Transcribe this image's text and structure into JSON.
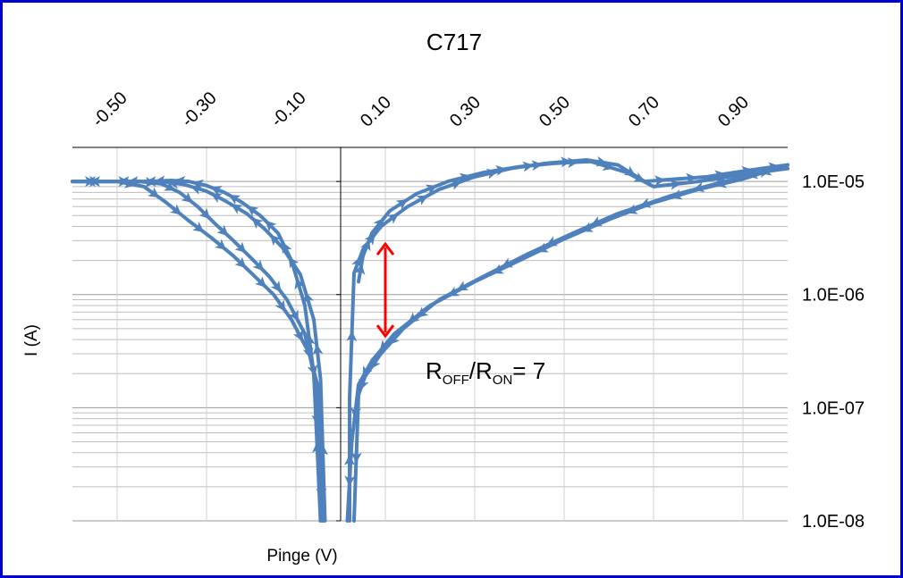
{
  "chart_data": {
    "type": "line",
    "title": "C717",
    "xlabel": "Pinge (V)",
    "ylabel": "I (A)",
    "xlim": [
      -0.6,
      1.0
    ],
    "ylim": [
      1e-08,
      2e-05
    ],
    "yscale": "log",
    "x_axis_position": "top",
    "y_axis_position": "right",
    "x_ticks": [
      -0.5,
      -0.3,
      -0.1,
      0.1,
      0.3,
      0.5,
      0.7,
      0.9
    ],
    "x_tick_labels": [
      "-0.50",
      "-0.30",
      "-0.10",
      "0.10",
      "0.30",
      "0.50",
      "0.70",
      "0.90"
    ],
    "y_ticks": [
      1e-08,
      1e-07,
      1e-06,
      1e-05
    ],
    "y_tick_labels": [
      "1.0E-08",
      "1.0E-07",
      "1.0E-06",
      "1.0E-05"
    ],
    "grid": true,
    "series_color": "#4f81bd",
    "series": [
      {
        "x": [
          0.02,
          0.02,
          0.03,
          0.05,
          0.09,
          0.15,
          0.22,
          0.3,
          0.38,
          0.46,
          0.55,
          0.62,
          0.68,
          0.75,
          0.82,
          0.88,
          0.94,
          1.0
        ],
        "y": [
          1e-08,
          1.2e-07,
          1.55e-06,
          2.5e-06,
          4e-06,
          6e-06,
          8.5e-06,
          1.1e-05,
          1.3e-05,
          1.45e-05,
          1.55e-05,
          1.4e-05,
          1e-05,
          1.05e-05,
          1.1e-05,
          1.2e-05,
          1.3e-05,
          1.4e-05
        ]
      },
      {
        "x": [
          1.0,
          0.9,
          0.8,
          0.7,
          0.6,
          0.5,
          0.4,
          0.3,
          0.2,
          0.12,
          0.07,
          0.04,
          0.025,
          0.015
        ],
        "y": [
          1.4e-05,
          1.05e-05,
          8.5e-06,
          6.5e-06,
          4.6e-06,
          3.1e-06,
          2e-06,
          1.3e-06,
          8e-07,
          4.5e-07,
          2.6e-07,
          1.6e-07,
          5e-08,
          1e-08
        ]
      },
      {
        "x": [
          0.04,
          0.05,
          0.07,
          0.11,
          0.17,
          0.24,
          0.32,
          0.4,
          0.48,
          0.56,
          0.64,
          0.7,
          0.8,
          0.9,
          1.0
        ],
        "y": [
          1.3e-06,
          2.2e-06,
          3.5e-06,
          5.5e-06,
          7.8e-06,
          1e-05,
          1.2e-05,
          1.35e-05,
          1.45e-05,
          1.5e-05,
          1.2e-05,
          9e-06,
          1e-05,
          1.15e-05,
          1.3e-05
        ]
      },
      {
        "x": [
          0.98,
          0.86,
          0.74,
          0.62,
          0.52,
          0.42,
          0.32,
          0.22,
          0.14,
          0.09,
          0.055,
          0.04,
          0.03
        ],
        "y": [
          1.3e-05,
          1e-05,
          7.5e-06,
          5.2e-06,
          3.5e-06,
          2.3e-06,
          1.45e-06,
          9e-07,
          5e-07,
          3e-07,
          1.9e-07,
          1.3e-07,
          1e-08
        ]
      },
      {
        "x": [
          -0.6,
          -0.52,
          -0.45,
          -0.4,
          -0.36,
          -0.32,
          -0.28,
          -0.24,
          -0.2,
          -0.16,
          -0.12,
          -0.08,
          -0.06,
          -0.045,
          -0.04
        ],
        "y": [
          1e-05,
          1e-05,
          1e-05,
          9.5e-06,
          8e-06,
          6e-06,
          4.2e-06,
          3e-06,
          2.1e-06,
          1.45e-06,
          9e-07,
          4.5e-07,
          2e-07,
          3e-08,
          1e-08
        ]
      },
      {
        "x": [
          -0.6,
          -0.5,
          -0.44,
          -0.39,
          -0.34,
          -0.29,
          -0.24,
          -0.2,
          -0.15,
          -0.11,
          -0.07,
          -0.05,
          -0.04
        ],
        "y": [
          1e-05,
          1e-05,
          9e-06,
          6.5e-06,
          4.5e-06,
          3.2e-06,
          2.2e-06,
          1.55e-06,
          1e-06,
          6e-07,
          3e-07,
          1.5e-07,
          1e-08
        ]
      },
      {
        "x": [
          -0.045,
          -0.06,
          -0.08,
          -0.11,
          -0.14,
          -0.18,
          -0.22,
          -0.26,
          -0.3,
          -0.34,
          -0.38,
          -0.43,
          -0.5,
          -0.6
        ],
        "y": [
          1e-08,
          2e-07,
          8e-07,
          2e-06,
          3.5e-06,
          5e-06,
          6.5e-06,
          8e-06,
          9.2e-06,
          1e-05,
          1.02e-05,
          1e-05,
          1e-05,
          1e-05
        ]
      },
      {
        "x": [
          -0.035,
          -0.045,
          -0.06,
          -0.09,
          -0.13,
          -0.17,
          -0.21,
          -0.26,
          -0.3,
          -0.35,
          -0.4,
          -0.45,
          -0.52,
          -0.6
        ],
        "y": [
          1e-08,
          1.8e-07,
          6e-07,
          1.5e-06,
          2.6e-06,
          3.8e-06,
          5.2e-06,
          6.8e-06,
          8.2e-06,
          9.4e-06,
          1e-05,
          1e-05,
          1e-05,
          1e-05
        ]
      }
    ],
    "annotations": [
      {
        "type": "double-arrow",
        "color": "#ff0000",
        "x": 0.1,
        "y1": 2.8e-06,
        "y2": 4.3e-07
      },
      {
        "type": "text",
        "text": "R",
        "sub_1": "OFF",
        "mid": "/R",
        "sub_2": "ON",
        "tail": "= 7",
        "x": 0.19,
        "y": 1.8e-07
      }
    ]
  }
}
